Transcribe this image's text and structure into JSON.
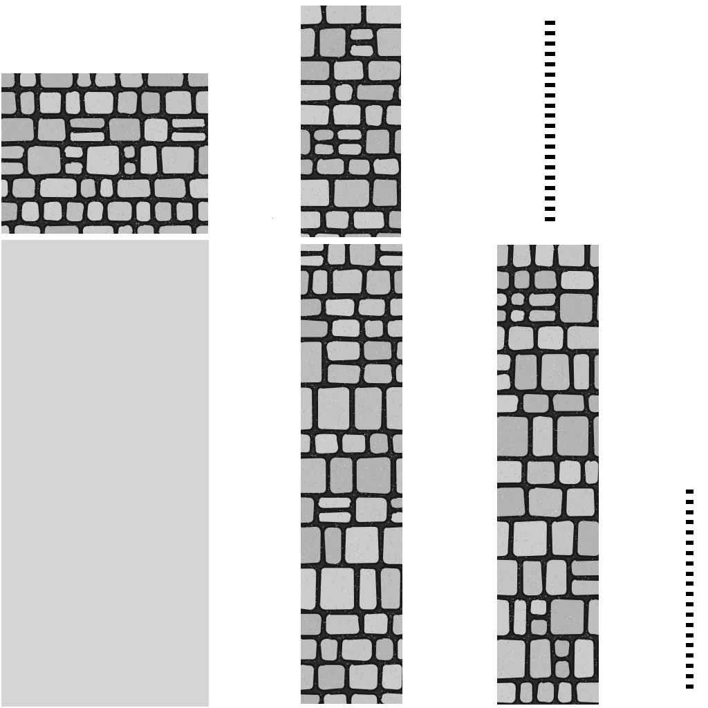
{
  "sheet": {
    "background": "#ffffff",
    "texture_colors": {
      "grout": "#1a1a1a",
      "stone_light": "#d2d2d2",
      "stone_mid": "#bdbdbd",
      "stone_dark": "#9a9a9a"
    }
  },
  "tiles": [
    {
      "name": "cobblestone-wall-tile-square",
      "texture": "cobblestone-icon"
    },
    {
      "name": "cobblestone-wall-tile-tall-top",
      "texture": "cobblestone-icon"
    },
    {
      "name": "rough-rock-tile",
      "texture": "rock-surface-icon"
    },
    {
      "name": "cobblestone-column-tile-middle",
      "texture": "cobblestone-icon"
    },
    {
      "name": "cobblestone-column-tile-right",
      "texture": "cobblestone-icon"
    }
  ],
  "tick_strips": [
    {
      "name": "tick-strip-upper",
      "count": 20
    },
    {
      "name": "tick-strip-lower",
      "count": 20
    }
  ]
}
